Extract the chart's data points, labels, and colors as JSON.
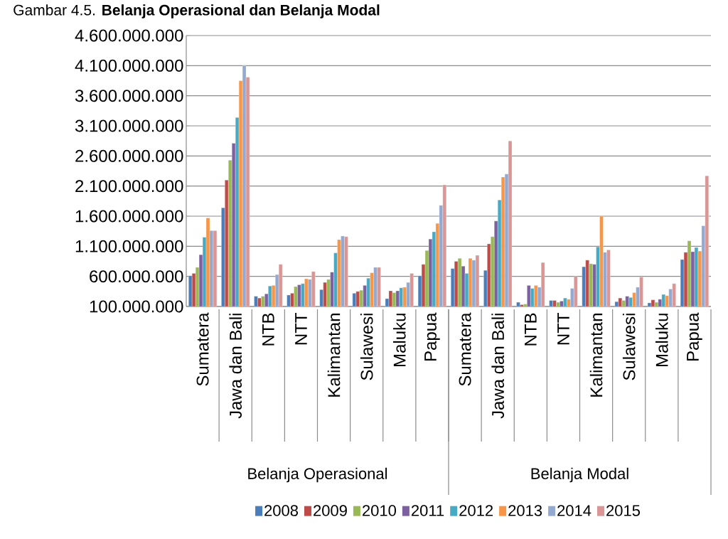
{
  "chart_data": {
    "type": "bar",
    "title": "Gambar 4.5. **Belanja Operasional dan Belanja Modal**",
    "categories": [
      "Sumatera",
      "Jawa dan Bali",
      "NTB",
      "NTT",
      "Kalimantan",
      "Sulawesi",
      "Maluku",
      "Papua",
      "Sumatera",
      "Jawa dan Bali",
      "NTB",
      "NTT",
      "Kalimantan",
      "Sulawesi",
      "Maluku",
      "Papua"
    ],
    "series": [
      {
        "name": "2008",
        "color": "#4a7ebb",
        "values": [
          610000000,
          1740000000,
          270000000,
          290000000,
          380000000,
          320000000,
          230000000,
          610000000,
          730000000,
          700000000,
          170000000,
          200000000,
          760000000,
          180000000,
          160000000,
          880000000
        ]
      },
      {
        "name": "2009",
        "color": "#be4b48",
        "values": [
          650000000,
          2200000000,
          240000000,
          320000000,
          500000000,
          350000000,
          360000000,
          800000000,
          850000000,
          1140000000,
          130000000,
          200000000,
          870000000,
          240000000,
          210000000,
          1000000000
        ]
      },
      {
        "name": "2010",
        "color": "#98b954",
        "values": [
          750000000,
          2530000000,
          270000000,
          430000000,
          550000000,
          370000000,
          330000000,
          1030000000,
          900000000,
          1260000000,
          140000000,
          170000000,
          810000000,
          200000000,
          170000000,
          1190000000
        ]
      },
      {
        "name": "2011",
        "color": "#7d60a0",
        "values": [
          960000000,
          2810000000,
          310000000,
          460000000,
          670000000,
          450000000,
          360000000,
          1220000000,
          770000000,
          1520000000,
          450000000,
          190000000,
          800000000,
          270000000,
          220000000,
          1010000000
        ]
      },
      {
        "name": "2012",
        "color": "#46aac5",
        "values": [
          1250000000,
          3240000000,
          440000000,
          480000000,
          990000000,
          570000000,
          410000000,
          1340000000,
          650000000,
          1870000000,
          400000000,
          240000000,
          1090000000,
          250000000,
          300000000,
          1080000000
        ]
      },
      {
        "name": "2013",
        "color": "#f79646",
        "values": [
          1570000000,
          3850000000,
          450000000,
          560000000,
          1210000000,
          660000000,
          420000000,
          1480000000,
          900000000,
          2250000000,
          450000000,
          220000000,
          1600000000,
          330000000,
          280000000,
          1020000000
        ]
      },
      {
        "name": "2014",
        "color": "#93a9d0",
        "values": [
          1360000000,
          4100000000,
          630000000,
          550000000,
          1270000000,
          750000000,
          500000000,
          1780000000,
          870000000,
          2300000000,
          420000000,
          400000000,
          1000000000,
          420000000,
          390000000,
          1440000000
        ]
      },
      {
        "name": "2015",
        "color": "#d99694",
        "values": [
          1360000000,
          3910000000,
          800000000,
          680000000,
          1260000000,
          750000000,
          650000000,
          2120000000,
          950000000,
          2850000000,
          830000000,
          600000000,
          1040000000,
          590000000,
          480000000,
          2270000000
        ]
      }
    ],
    "ylim": [
      100000000,
      4600000000
    ],
    "yticks": [
      {
        "value": 100000000,
        "label": "100.000.000"
      },
      {
        "value": 600000000,
        "label": "600.000.000"
      },
      {
        "value": 1100000000,
        "label": "1.100.000.000"
      },
      {
        "value": 1600000000,
        "label": "1.600.000.000"
      },
      {
        "value": 2100000000,
        "label": "2.100.000.000"
      },
      {
        "value": 2600000000,
        "label": "2.600.000.000"
      },
      {
        "value": 3100000000,
        "label": "3.100.000.000"
      },
      {
        "value": 3600000000,
        "label": "3.600.000.000"
      },
      {
        "value": 4100000000,
        "label": "4.100.000.000"
      },
      {
        "value": 4600000000,
        "label": "4.600.000.000"
      }
    ],
    "grid": "y",
    "legend": "bottom",
    "annotations": [
      "Belanja Operasional",
      "Belanja Modal"
    ]
  }
}
